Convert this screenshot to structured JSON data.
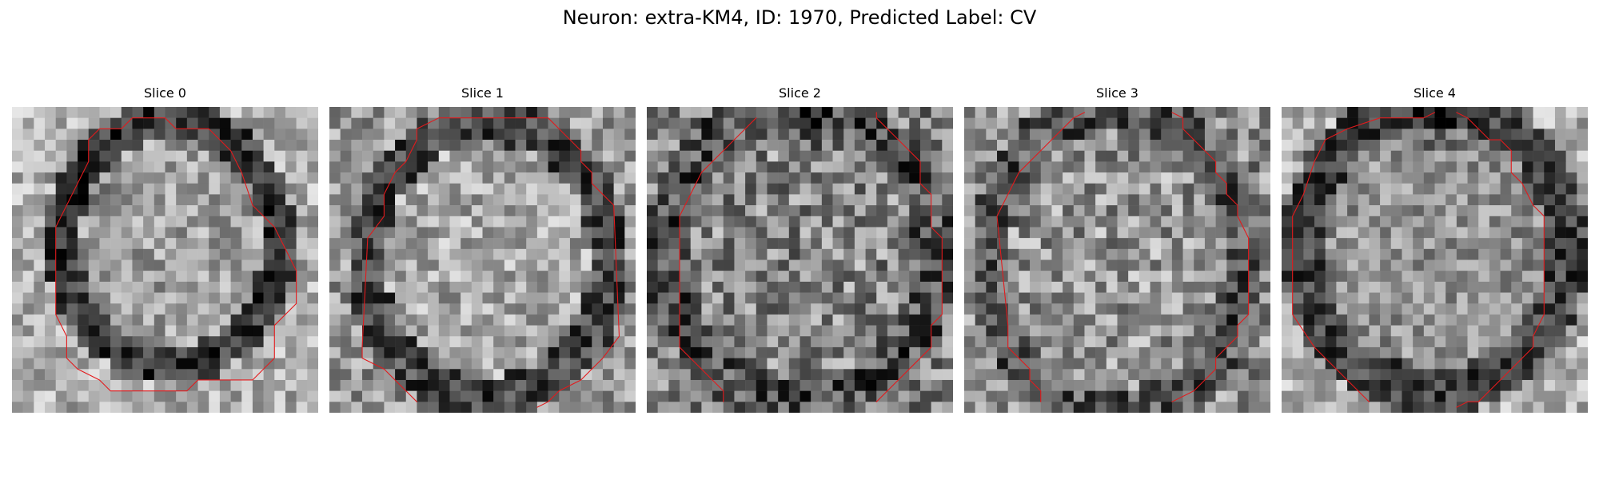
{
  "figure": {
    "title": "Neuron: extra-KM4, ID: 1970, Predicted Label: CV"
  },
  "colors": {
    "background": "#ffffff",
    "contour": "#e31a1c",
    "colormap": "grayscale"
  },
  "slices": [
    {
      "label": "Slice 0"
    },
    {
      "label": "Slice 1"
    },
    {
      "label": "Slice 2"
    },
    {
      "label": "Slice 3"
    },
    {
      "label": "Slice 4"
    }
  ]
}
